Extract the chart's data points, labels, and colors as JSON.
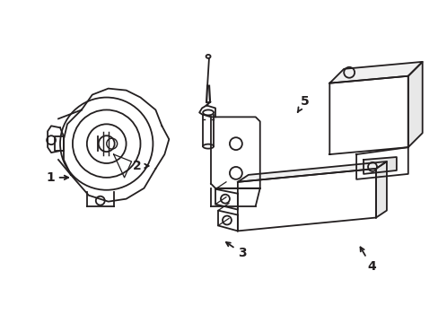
{
  "background_color": "#ffffff",
  "line_color": "#231f20",
  "line_width": 1.3,
  "label_fontsize": 10,
  "fig_width": 4.89,
  "fig_height": 3.6,
  "dpi": 100
}
